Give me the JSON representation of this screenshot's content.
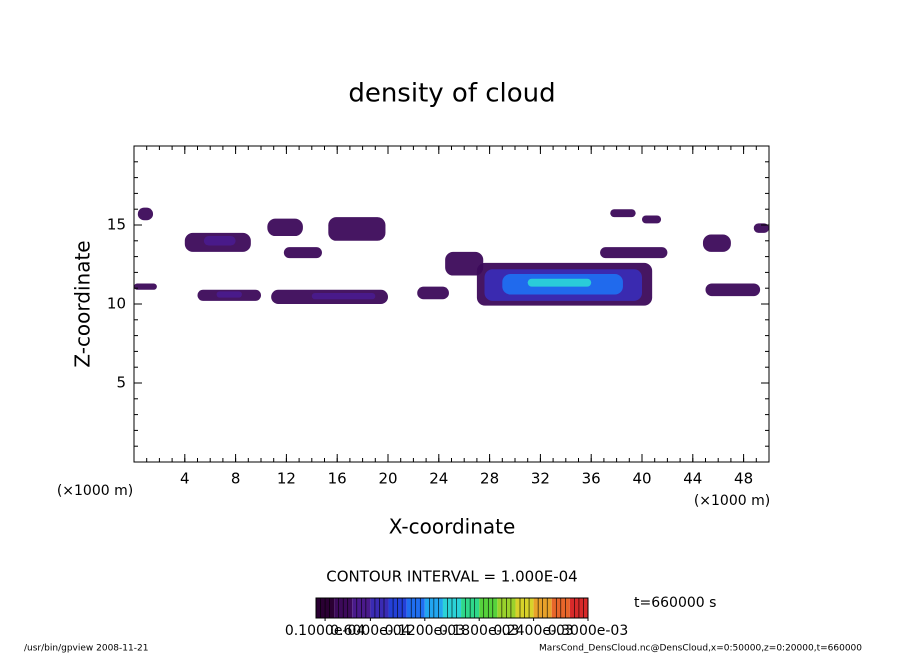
{
  "chart_data": {
    "type": "contour",
    "title": "density of cloud",
    "xlabel": "X-coordinate",
    "ylabel": "Z-coordinate",
    "x_unit_label": "(×1000 m)",
    "y_unit_label": "(×1000 m)",
    "xlim": [
      0,
      50
    ],
    "ylim": [
      0,
      20
    ],
    "xticks": [
      4,
      8,
      12,
      16,
      20,
      24,
      28,
      32,
      36,
      40,
      44,
      48
    ],
    "yticks": [
      5,
      10,
      15
    ],
    "minor_step": 1,
    "contour_interval": "CONTOUR INTERVAL = 1.000E-04",
    "time_label": "t=660000 s",
    "footer_left": "/usr/bin/gpview  2008-11-21",
    "footer_right": "MarsCond_DensCloud.nc@DensCloud,x=0:50000,z=0:20000,t=660000",
    "colorbar": {
      "lim": [
        0,
        0.0003
      ],
      "colors": [
        "#2a0033",
        "#3c0a5a",
        "#4a1a8c",
        "#3a2bb4",
        "#2340d8",
        "#1f6ef0",
        "#22a6f0",
        "#2bd2d8",
        "#2fd88a",
        "#56d23c",
        "#9ad22c",
        "#d8d22a",
        "#e8a22a",
        "#e8662a",
        "#d82a2a"
      ],
      "ticks": [
        {
          "value": 1e-05,
          "label": "0.1000e-04"
        },
        {
          "value": 6e-05,
          "label": "0.6000e-04"
        },
        {
          "value": 0.00012,
          "label": "0.1200e-03"
        },
        {
          "value": 0.00018,
          "label": "0.1800e-03"
        },
        {
          "value": 0.00024,
          "label": "0.2400e-03"
        },
        {
          "value": 0.0003,
          "label": "0.3000e-03"
        }
      ]
    },
    "patches": [
      {
        "x0": 0.3,
        "x1": 1.5,
        "z0": 15.3,
        "z1": 16.1,
        "value": 2e-05
      },
      {
        "x0": 0,
        "x1": 1.8,
        "z0": 10.9,
        "z1": 11.3,
        "value": 2e-05
      },
      {
        "x0": 4,
        "x1": 9.2,
        "z0": 13.3,
        "z1": 14.5,
        "value": 2e-05
      },
      {
        "x0": 5.5,
        "x1": 8,
        "z0": 13.7,
        "z1": 14.3,
        "value": 4e-05
      },
      {
        "x0": 10.5,
        "x1": 13.3,
        "z0": 14.3,
        "z1": 15.4,
        "value": 2e-05
      },
      {
        "x0": 11.8,
        "x1": 14.8,
        "z0": 12.9,
        "z1": 13.6,
        "value": 2e-05
      },
      {
        "x0": 15.3,
        "x1": 19.8,
        "z0": 14,
        "z1": 15.5,
        "value": 2e-05
      },
      {
        "x0": 5,
        "x1": 10,
        "z0": 10.2,
        "z1": 10.9,
        "value": 2e-05
      },
      {
        "x0": 6.5,
        "x1": 8.5,
        "z0": 10.4,
        "z1": 10.8,
        "value": 4e-05
      },
      {
        "x0": 10.8,
        "x1": 20,
        "z0": 10,
        "z1": 10.9,
        "value": 2e-05
      },
      {
        "x0": 14,
        "x1": 19,
        "z0": 10.3,
        "z1": 10.7,
        "value": 4e-05
      },
      {
        "x0": 22.3,
        "x1": 24.8,
        "z0": 10.3,
        "z1": 11.1,
        "value": 2e-05
      },
      {
        "x0": 24.5,
        "x1": 27.5,
        "z0": 11.8,
        "z1": 13.3,
        "value": 2e-05
      },
      {
        "x0": 27,
        "x1": 40.8,
        "z0": 9.9,
        "z1": 12.6,
        "value": 2e-05
      },
      {
        "x0": 27.6,
        "x1": 40,
        "z0": 10.2,
        "z1": 12.2,
        "value": 6e-05
      },
      {
        "x0": 29,
        "x1": 38.5,
        "z0": 10.6,
        "z1": 11.9,
        "value": 0.0001
      },
      {
        "x0": 31,
        "x1": 36,
        "z0": 11.1,
        "z1": 11.6,
        "value": 0.00014
      },
      {
        "x0": 36.7,
        "x1": 42,
        "z0": 12.9,
        "z1": 13.6,
        "value": 2e-05
      },
      {
        "x0": 37.5,
        "x1": 39.5,
        "z0": 15.5,
        "z1": 16,
        "value": 2e-05
      },
      {
        "x0": 40,
        "x1": 41.5,
        "z0": 15.1,
        "z1": 15.6,
        "value": 2e-05
      },
      {
        "x0": 44.8,
        "x1": 47,
        "z0": 13.3,
        "z1": 14.4,
        "value": 2e-05
      },
      {
        "x0": 45,
        "x1": 49.3,
        "z0": 10.5,
        "z1": 11.3,
        "value": 2e-05
      },
      {
        "x0": 48.8,
        "x1": 50,
        "z0": 14.5,
        "z1": 15.1,
        "value": 2e-05
      }
    ]
  }
}
